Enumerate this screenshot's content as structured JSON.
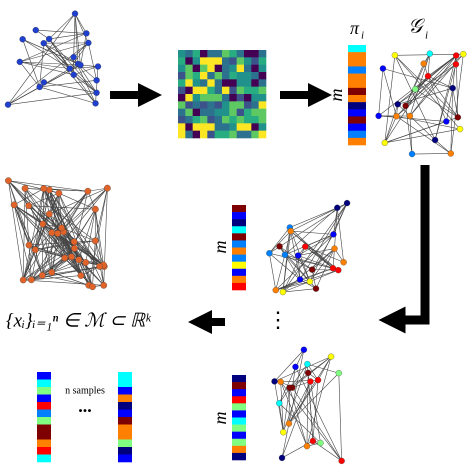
{
  "labels": {
    "pi": "π",
    "pi_sub": "i",
    "g": "𝒢",
    "g_sub": "i",
    "m_top": "m",
    "m_mid": "m",
    "m_bottom": "m",
    "vdots": "⋮",
    "formula": "{xᵢ}ᵢ₌₁ⁿ ∈ ℳ ⊂ ℝᵏ",
    "n_samples": "n samples",
    "ellipsis": "..."
  }
}
